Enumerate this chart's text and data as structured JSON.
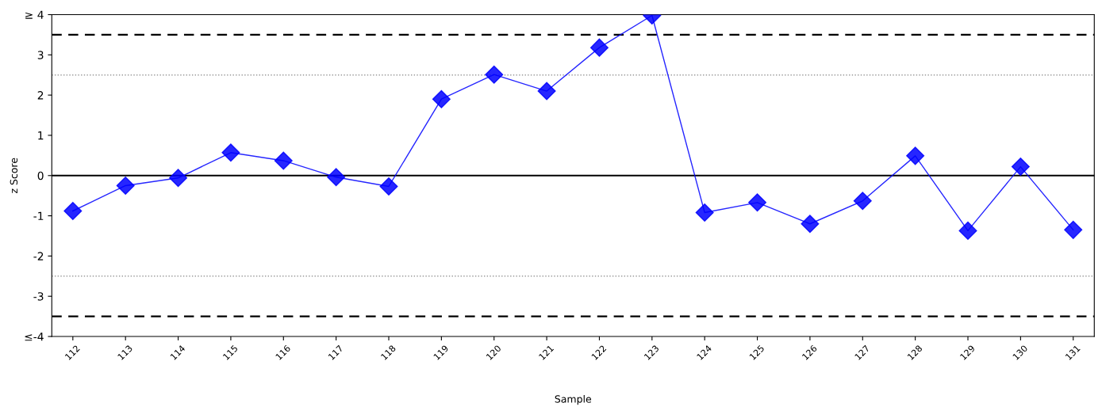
{
  "chart_data": {
    "type": "line",
    "xlabel": "Sample",
    "ylabel": "z Score",
    "categories": [
      "112",
      "113",
      "114",
      "115",
      "116",
      "117",
      "118",
      "119",
      "120",
      "121",
      "122",
      "123",
      "124",
      "125",
      "126",
      "127",
      "128",
      "129",
      "130",
      "131"
    ],
    "series": [
      {
        "color": "#0000ff",
        "values": [
          -0.88,
          -0.25,
          -0.06,
          0.57,
          0.37,
          -0.04,
          -0.27,
          1.9,
          2.51,
          2.1,
          3.18,
          3.98,
          -0.92,
          -0.67,
          -1.2,
          -0.63,
          0.49,
          -1.37,
          0.22,
          -1.35
        ]
      }
    ],
    "ylim": [
      -4,
      4
    ],
    "yticks": [
      {
        "value": -4,
        "label": "≤-4"
      },
      -3,
      -2,
      -1,
      0,
      1,
      2,
      3,
      {
        "value": 4,
        "label": "≥ 4"
      }
    ],
    "ref_lines": [
      {
        "axis": "y",
        "value": 0,
        "color": "#000000",
        "line_style": "solid"
      },
      {
        "axis": "y",
        "value": 3.5,
        "color": "#000000",
        "line_style": "dashed"
      },
      {
        "axis": "y",
        "value": -3.5,
        "color": "#000000",
        "line_style": "dashed"
      },
      {
        "axis": "y",
        "value": 2.5,
        "color": "#999999",
        "line_style": "dotted"
      },
      {
        "axis": "y",
        "value": -2.5,
        "color": "#999999",
        "line_style": "dotted"
      }
    ],
    "grid": false,
    "legend": false,
    "marker": "diamond",
    "line_style": "solid"
  }
}
